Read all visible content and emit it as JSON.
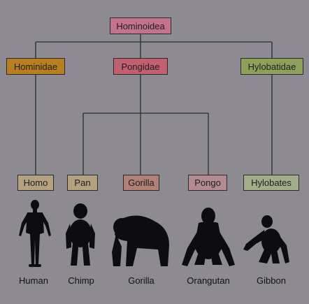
{
  "taxonomy": {
    "superfamily": {
      "name": "Hominoidea",
      "color": "#c3748c"
    },
    "families": [
      {
        "name": "Hominidae",
        "color": "#b77f1f"
      },
      {
        "name": "Pongidae",
        "color": "#c3606f"
      },
      {
        "name": "Hylobatidae",
        "color": "#8fa05b"
      }
    ],
    "genera": [
      {
        "name": "Homo",
        "color": "#b4a27e"
      },
      {
        "name": "Pan",
        "color": "#b4a27e"
      },
      {
        "name": "Gorilla",
        "color": "#b08276"
      },
      {
        "name": "Pongo",
        "color": "#b28a90"
      },
      {
        "name": "Hylobates",
        "color": "#a4ad8a"
      }
    ],
    "common_names": [
      "Human",
      "Chimp",
      "Gorilla",
      "Orangutan",
      "Gibbon"
    ]
  }
}
